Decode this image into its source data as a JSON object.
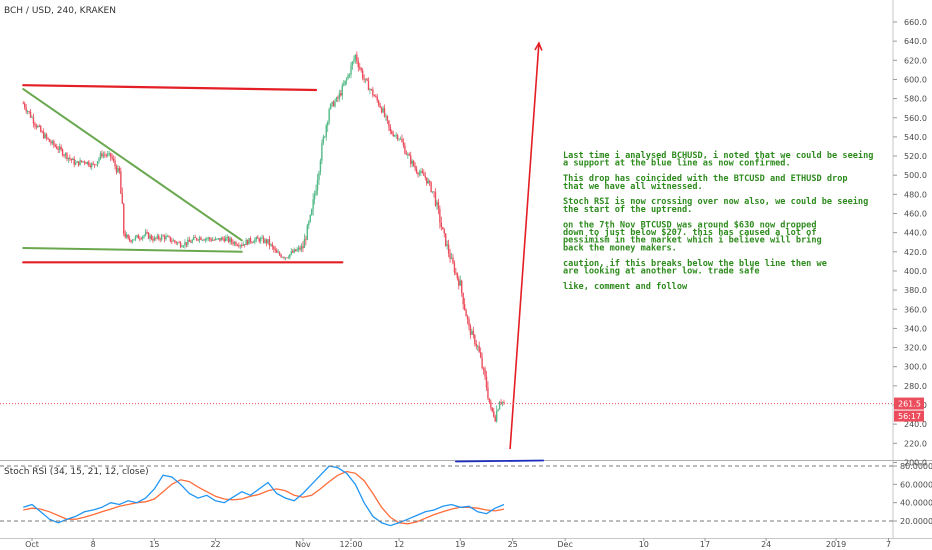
{
  "header": {
    "symbol": "BCH / USD, 240, KRAKEN",
    "stoch_label": "Stoch RSI (34, 15, 21, 12, close)"
  },
  "colors": {
    "up": "#53b987",
    "down": "#eb4d5c",
    "support": "#1e2fbe",
    "resistance": "#e31e24",
    "trend": "#6aa84f",
    "note": "#2e8b1e",
    "k_line": "#2196f3",
    "d_line": "#ff6d3a",
    "price_badge": "#eb4d5c"
  },
  "price_axis": {
    "ticks": [
      200,
      220,
      240,
      260,
      280,
      300,
      320,
      340,
      360,
      380,
      400,
      420,
      440,
      460,
      480,
      500,
      520,
      540,
      560,
      580,
      600,
      620,
      640,
      660
    ],
    "tick_labels": [
      "200.0",
      "220.0",
      "240.0",
      "260.0",
      "280.0",
      "300.0",
      "320.0",
      "340.0",
      "360.0",
      "380.0",
      "400.0",
      "420.0",
      "440.0",
      "460.0",
      "480.0",
      "500.0",
      "520.0",
      "540.0",
      "560.0",
      "580.0",
      "600.0",
      "620.0",
      "640.0",
      "660.0"
    ],
    "current_price": 261.5,
    "current_price_label": "261.5",
    "countdown_label": "56:17"
  },
  "stoch_axis": {
    "ticks": [
      20,
      40,
      60,
      80
    ],
    "tick_labels": [
      "20.0000",
      "40.0000",
      "60.0000",
      "80.0000"
    ],
    "bands": [
      20,
      80
    ]
  },
  "time_axis": {
    "labels": [
      "Oct",
      "8",
      "15",
      "22",
      "Nov",
      "12:00",
      "12",
      "19",
      "25",
      "Dec",
      "10",
      "17",
      "24",
      "2019",
      "7"
    ],
    "label_days": [
      0,
      7,
      14,
      21,
      31,
      36.5,
      42,
      49,
      55,
      61,
      70,
      77,
      84,
      92,
      98
    ]
  },
  "chart_data": {
    "type": "candlestick",
    "timeframe": "240",
    "x_unit": "days since Oct 1",
    "price_path": [
      [
        -1,
        575
      ],
      [
        0,
        560
      ],
      [
        1,
        545
      ],
      [
        2,
        535
      ],
      [
        3,
        528
      ],
      [
        4,
        520
      ],
      [
        5,
        512
      ],
      [
        6,
        515
      ],
      [
        7,
        510
      ],
      [
        8,
        522
      ],
      [
        9,
        520
      ],
      [
        10,
        500
      ],
      [
        10.5,
        440
      ],
      [
        11,
        432
      ],
      [
        12,
        435
      ],
      [
        13,
        438
      ],
      [
        14,
        433
      ],
      [
        15,
        436
      ],
      [
        16,
        432
      ],
      [
        17,
        428
      ],
      [
        18,
        430
      ],
      [
        19,
        435
      ],
      [
        20,
        434
      ],
      [
        21,
        432
      ],
      [
        22,
        434
      ],
      [
        23,
        430
      ],
      [
        24,
        428
      ],
      [
        25,
        432
      ],
      [
        26,
        433
      ],
      [
        27,
        430
      ],
      [
        28,
        418
      ],
      [
        29,
        415
      ],
      [
        30,
        420
      ],
      [
        31,
        425
      ],
      [
        32,
        460
      ],
      [
        33,
        520
      ],
      [
        34,
        570
      ],
      [
        35,
        580
      ],
      [
        36,
        600
      ],
      [
        37,
        625
      ],
      [
        38,
        600
      ],
      [
        39,
        585
      ],
      [
        40,
        570
      ],
      [
        41,
        545
      ],
      [
        42,
        540
      ],
      [
        43,
        520
      ],
      [
        44,
        505
      ],
      [
        45,
        498
      ],
      [
        46,
        480
      ],
      [
        47,
        440
      ],
      [
        48,
        410
      ],
      [
        49,
        385
      ],
      [
        50,
        340
      ],
      [
        51,
        320
      ],
      [
        52,
        280
      ],
      [
        52.5,
        255
      ],
      [
        53,
        248
      ],
      [
        53.5,
        265
      ],
      [
        54,
        262
      ]
    ],
    "stoch_k_path": [
      [
        -1,
        35
      ],
      [
        0,
        38
      ],
      [
        1,
        30
      ],
      [
        2,
        22
      ],
      [
        3,
        18
      ],
      [
        4,
        22
      ],
      [
        5,
        25
      ],
      [
        6,
        30
      ],
      [
        7,
        32
      ],
      [
        8,
        35
      ],
      [
        9,
        40
      ],
      [
        10,
        38
      ],
      [
        11,
        42
      ],
      [
        12,
        40
      ],
      [
        13,
        45
      ],
      [
        14,
        55
      ],
      [
        15,
        70
      ],
      [
        16,
        68
      ],
      [
        17,
        60
      ],
      [
        18,
        50
      ],
      [
        19,
        45
      ],
      [
        20,
        48
      ],
      [
        21,
        42
      ],
      [
        22,
        40
      ],
      [
        23,
        46
      ],
      [
        24,
        52
      ],
      [
        25,
        48
      ],
      [
        26,
        55
      ],
      [
        27,
        62
      ],
      [
        28,
        50
      ],
      [
        29,
        45
      ],
      [
        30,
        42
      ],
      [
        31,
        50
      ],
      [
        32,
        60
      ],
      [
        33,
        70
      ],
      [
        34,
        80
      ],
      [
        35,
        78
      ],
      [
        36,
        72
      ],
      [
        37,
        60
      ],
      [
        38,
        40
      ],
      [
        39,
        25
      ],
      [
        40,
        18
      ],
      [
        41,
        15
      ],
      [
        42,
        18
      ],
      [
        43,
        22
      ],
      [
        44,
        26
      ],
      [
        45,
        30
      ],
      [
        46,
        32
      ],
      [
        47,
        36
      ],
      [
        48,
        38
      ],
      [
        49,
        35
      ],
      [
        50,
        36
      ],
      [
        51,
        30
      ],
      [
        52,
        28
      ],
      [
        53,
        34
      ],
      [
        54,
        38
      ]
    ],
    "stoch_d_path": [
      [
        -1,
        32
      ],
      [
        0,
        34
      ],
      [
        1,
        33
      ],
      [
        2,
        30
      ],
      [
        3,
        26
      ],
      [
        4,
        22
      ],
      [
        5,
        22
      ],
      [
        6,
        24
      ],
      [
        7,
        27
      ],
      [
        8,
        30
      ],
      [
        9,
        33
      ],
      [
        10,
        36
      ],
      [
        11,
        38
      ],
      [
        12,
        40
      ],
      [
        13,
        41
      ],
      [
        14,
        44
      ],
      [
        15,
        52
      ],
      [
        16,
        60
      ],
      [
        17,
        65
      ],
      [
        18,
        63
      ],
      [
        19,
        57
      ],
      [
        20,
        52
      ],
      [
        21,
        47
      ],
      [
        22,
        44
      ],
      [
        23,
        43
      ],
      [
        24,
        44
      ],
      [
        25,
        47
      ],
      [
        26,
        49
      ],
      [
        27,
        53
      ],
      [
        28,
        55
      ],
      [
        29,
        53
      ],
      [
        30,
        48
      ],
      [
        31,
        46
      ],
      [
        32,
        48
      ],
      [
        33,
        55
      ],
      [
        34,
        63
      ],
      [
        35,
        70
      ],
      [
        36,
        74
      ],
      [
        37,
        72
      ],
      [
        38,
        64
      ],
      [
        39,
        50
      ],
      [
        40,
        35
      ],
      [
        41,
        24
      ],
      [
        42,
        18
      ],
      [
        43,
        17
      ],
      [
        44,
        19
      ],
      [
        45,
        23
      ],
      [
        46,
        27
      ],
      [
        47,
        30
      ],
      [
        48,
        33
      ],
      [
        49,
        35
      ],
      [
        50,
        35
      ],
      [
        51,
        34
      ],
      [
        52,
        32
      ],
      [
        53,
        31
      ],
      [
        54,
        33
      ]
    ],
    "support_line": {
      "x": [
        48.5,
        58.5
      ],
      "y": [
        201,
        202
      ]
    },
    "lower_red_line": {
      "x": [
        -1,
        35.5
      ],
      "y": [
        409,
        409
      ]
    },
    "upper_red_line": {
      "x": [
        -1,
        32.5
      ],
      "y": [
        594,
        589
      ]
    },
    "descending_trend": {
      "x": [
        -1,
        24
      ],
      "y": [
        590,
        432
      ]
    },
    "green_base_line": {
      "x": [
        -1,
        24
      ],
      "y": [
        424,
        420
      ]
    },
    "projection_arrow": {
      "x": [
        54.7,
        58
      ],
      "y": [
        214,
        638
      ]
    }
  },
  "annotation": {
    "lines": [
      "Last time i analysed BCHUSD, i noted that we could be seeing",
      "a support at the blue line as now confirmed.",
      "",
      "This drop has coincided with the BTCUSD and ETHUSD drop",
      "that we have all witnessed.",
      "",
      "Stoch RSI is now crossing over now also, we could be seeing",
      "the start of the uptrend.",
      "",
      "on the 7th Nov BTCUSD was around $630 now dropped",
      "down to just below $207. this has caused a lot of",
      "pessimism in the market which i believe will bring",
      "back the money makers.",
      "",
      "caution, if this breaks below the blue line then we",
      "are looking at another low. trade safe",
      "",
      "like, comment and follow"
    ]
  }
}
